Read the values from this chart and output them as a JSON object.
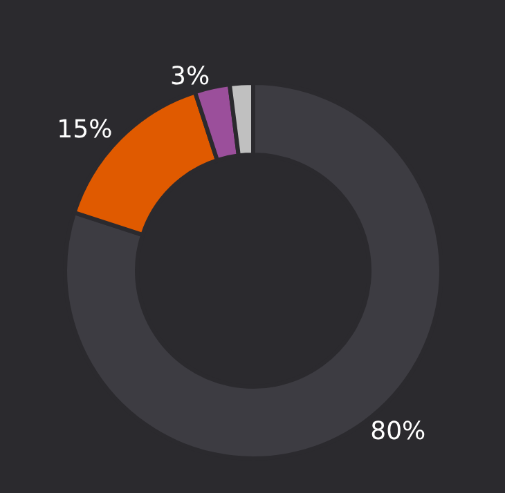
{
  "chart_data": {
    "type": "donut",
    "categories": [
      null,
      null,
      null,
      null
    ],
    "values": [
      80,
      15,
      3,
      2
    ],
    "colors": [
      "#3d3c42",
      "#e05a00",
      "#9b4f9b",
      "#c0c0c0"
    ],
    "value_labels": [
      "80%",
      "15%",
      "3%",
      null
    ]
  }
}
